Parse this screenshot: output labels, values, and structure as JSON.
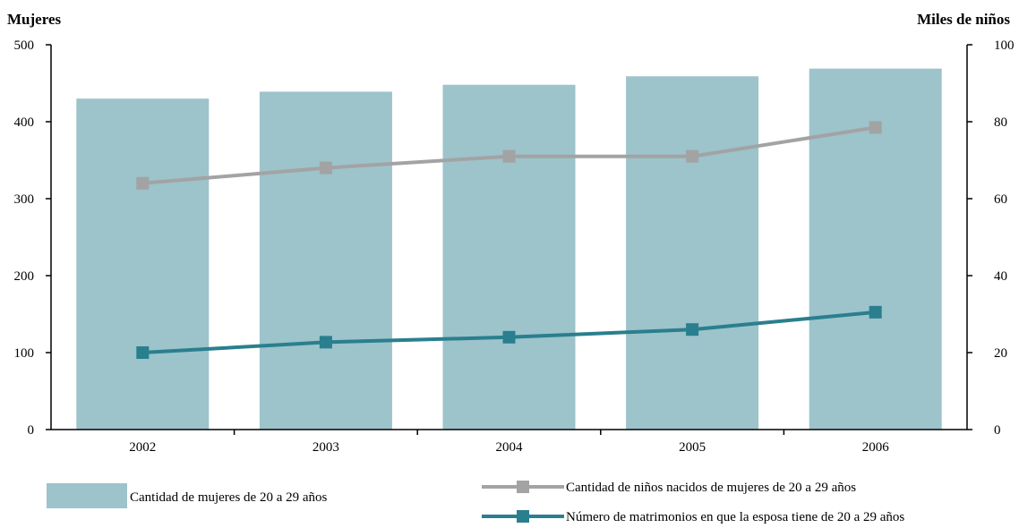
{
  "chart_data": {
    "type": "bar",
    "categories": [
      "2002",
      "2003",
      "2004",
      "2005",
      "2006"
    ],
    "y_left": {
      "label": "Mujeres",
      "ylim": [
        0,
        500
      ],
      "ticks": [
        0,
        100,
        200,
        300,
        400,
        500
      ]
    },
    "y_right": {
      "label": "Miles de niños",
      "ylim": [
        0,
        100
      ],
      "ticks": [
        0,
        20,
        40,
        60,
        80,
        100
      ]
    },
    "grid": false,
    "legend_position": "bottom",
    "series": [
      {
        "name": "Cantidad de mujeres de 20 a 29 años",
        "kind": "bar",
        "axis": "left",
        "color": "#9dc3cb",
        "values": [
          430,
          439,
          448,
          459,
          469
        ]
      },
      {
        "name": "Cantidad de niños nacidos de mujeres de 20 a 29 años",
        "kind": "line",
        "axis": "right",
        "color": "#a3a3a3",
        "values": [
          64,
          68,
          71,
          71,
          78.5
        ]
      },
      {
        "name": "Número de matrimonios en que la esposa tiene de 20 a 29 años",
        "kind": "line",
        "axis": "right",
        "color": "#2a7f8e",
        "values": [
          20,
          22.7,
          24,
          26,
          30.5
        ]
      }
    ]
  }
}
